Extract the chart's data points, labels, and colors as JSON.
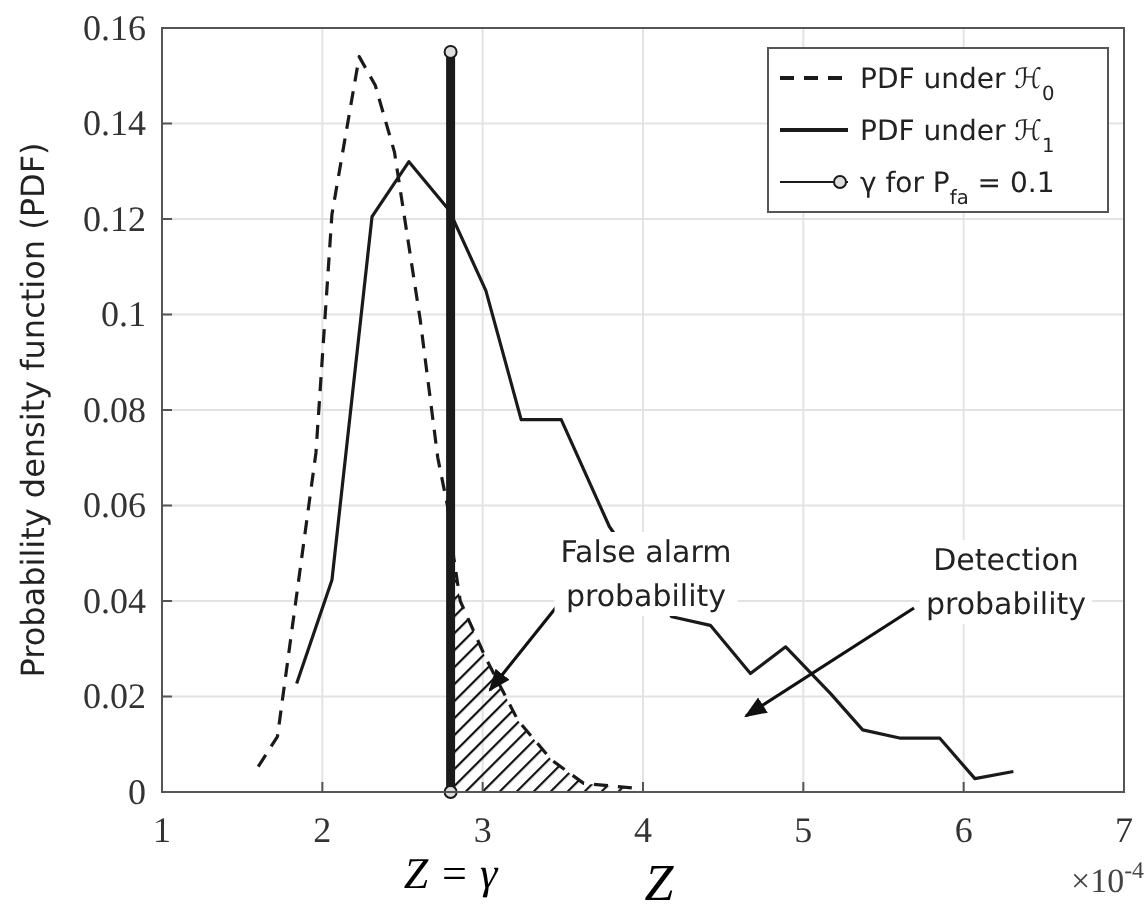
{
  "chart_data": {
    "type": "line",
    "xlabel": "Z",
    "ylabel": "Probability density function (PDF)",
    "xlim": [
      1,
      7
    ],
    "xticks": [
      1,
      2,
      3,
      4,
      5,
      6,
      7
    ],
    "ylim": [
      0,
      0.16
    ],
    "yticks": [
      0,
      0.02,
      0.04,
      0.06,
      0.08,
      0.1,
      0.12,
      0.14,
      0.16
    ],
    "grid": true,
    "legend": "top right",
    "series": [
      {
        "name": "PDF under ℋ$_{0}$",
        "color": "#1a1a1a",
        "line_style": "dashed",
        "x": [
          1.6,
          1.72,
          1.96,
          2.06,
          2.23,
          2.33,
          2.45,
          2.61,
          2.72,
          2.78,
          2.82,
          2.86,
          3.02,
          3.22,
          3.43,
          3.63,
          3.95
        ],
        "values": [
          0.0053,
          0.0116,
          0.071,
          0.121,
          0.154,
          0.148,
          0.134,
          0.099,
          0.07,
          0.06,
          0.049,
          0.04,
          0.028,
          0.015,
          0.0067,
          0.0018,
          0.0008
        ]
      },
      {
        "name": "PDF under ℋ$_{1}$",
        "color": "#1a1a1a",
        "line_style": "solid",
        "x": [
          1.84,
          2.06,
          2.31,
          2.54,
          2.79,
          3.02,
          3.24,
          3.49,
          3.79,
          4.18,
          4.42,
          4.67,
          4.89,
          5.17,
          5.37,
          5.6,
          5.85,
          6.07,
          6.31
        ],
        "values": [
          0.0227,
          0.0444,
          0.1205,
          0.132,
          0.1219,
          0.105,
          0.078,
          0.078,
          0.0556,
          0.0367,
          0.0349,
          0.0248,
          0.0304,
          0.0206,
          0.013,
          0.0113,
          0.0113,
          0.0028,
          0.0043
        ]
      },
      {
        "name": "γ for P$_{fa}$ = 0.1",
        "color": "#1a1a1a",
        "line_style": "solid",
        "marker": "circle",
        "x": [
          2.8,
          2.8
        ],
        "values": [
          0,
          0.155
        ]
      }
    ],
    "annotations": [
      "False alarm probability",
      "Detection probability",
      "Z = γ",
      "×10$^{-4}$"
    ]
  }
}
